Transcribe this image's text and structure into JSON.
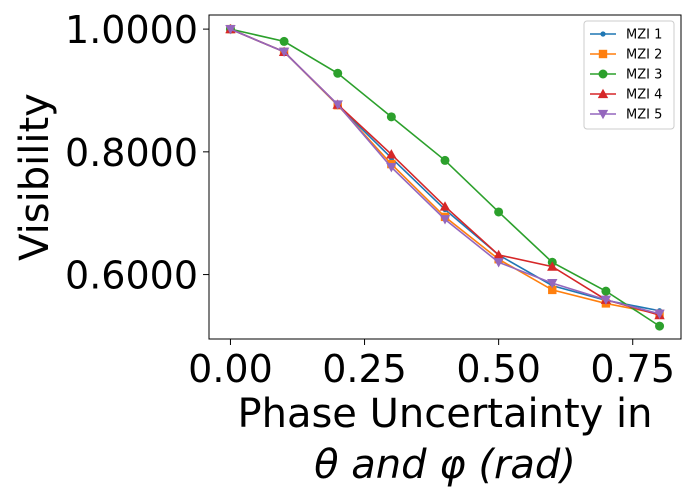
{
  "chart_data": {
    "type": "line",
    "title": "",
    "xlabel_line1": "Phase Uncertainty in",
    "xlabel_line2": "θ and φ (rad)",
    "ylabel": "Visibility",
    "x": [
      0.0,
      0.1,
      0.2,
      0.3,
      0.4,
      0.5,
      0.6,
      0.7,
      0.8
    ],
    "xlim": [
      -0.04,
      0.84
    ],
    "ylim": [
      0.495,
      1.023
    ],
    "x_ticks": [
      0.0,
      0.25,
      0.5,
      0.75
    ],
    "x_tick_labels": [
      "0.00",
      "0.25",
      "0.50",
      "0.75"
    ],
    "y_ticks": [
      0.6,
      0.8,
      1.0
    ],
    "y_tick_labels": [
      "0.6000",
      "0.8000",
      "1.0000"
    ],
    "grid": false,
    "legend_position": "top-right",
    "series": [
      {
        "name": "MZI 1",
        "color": "#1f77b4",
        "marker": "point",
        "values": [
          1.0,
          0.963,
          0.876,
          0.79,
          0.706,
          0.632,
          0.582,
          0.558,
          0.541
        ]
      },
      {
        "name": "MZI 2",
        "color": "#ff7f0e",
        "marker": "square",
        "values": [
          1.0,
          0.963,
          0.876,
          0.78,
          0.694,
          0.625,
          0.575,
          0.553,
          0.536
        ]
      },
      {
        "name": "MZI 3",
        "color": "#2ca02c",
        "marker": "circle",
        "values": [
          1.0,
          0.98,
          0.928,
          0.857,
          0.786,
          0.702,
          0.62,
          0.573,
          0.516
        ]
      },
      {
        "name": "MZI 4",
        "color": "#d62728",
        "marker": "triangle-up",
        "values": [
          1.0,
          0.963,
          0.877,
          0.796,
          0.711,
          0.632,
          0.613,
          0.559,
          0.534
        ]
      },
      {
        "name": "MZI 5",
        "color": "#9467bd",
        "marker": "triangle-down",
        "values": [
          1.0,
          0.963,
          0.877,
          0.775,
          0.69,
          0.62,
          0.586,
          0.559,
          0.536
        ]
      }
    ]
  }
}
